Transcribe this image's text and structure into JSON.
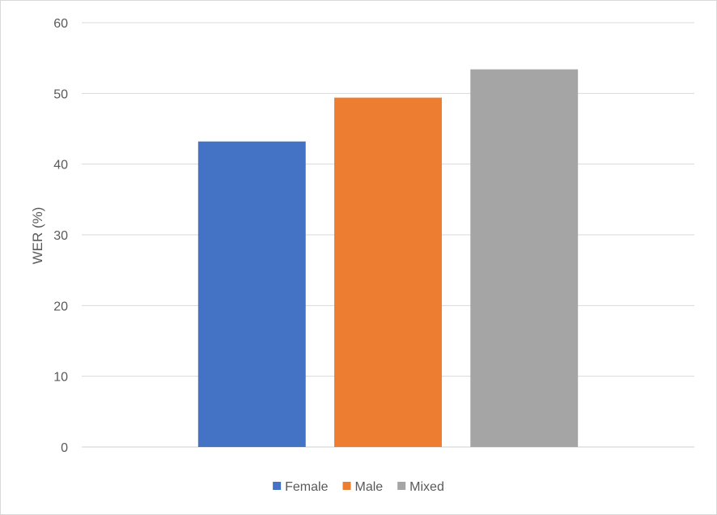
{
  "chart_data": {
    "type": "bar",
    "categories": [
      "Female",
      "Male",
      "Mixed"
    ],
    "values": [
      43.2,
      49.4,
      53.4
    ],
    "colors": [
      "#4472c4",
      "#ed7d31",
      "#a5a5a5"
    ],
    "title": "",
    "xlabel": "",
    "ylabel": "WER (%)",
    "ylim": [
      0,
      60
    ],
    "yticks": [
      "0",
      "10",
      "20",
      "30",
      "40",
      "50",
      "60"
    ],
    "grid": true,
    "legend": {
      "position": "bottom",
      "entries": [
        "Female",
        "Male",
        "Mixed"
      ]
    }
  }
}
